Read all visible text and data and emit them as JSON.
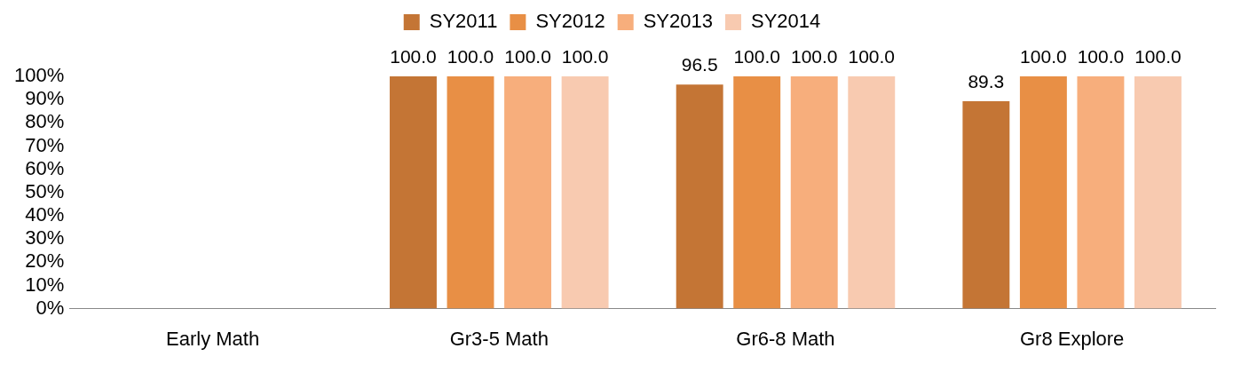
{
  "chart_data": {
    "type": "bar",
    "categories": [
      "Early Math",
      "Gr3-5 Math",
      "Gr6-8 Math",
      "Gr8 Explore"
    ],
    "series": [
      {
        "name": "SY2011",
        "color": "#c47535",
        "values": [
          null,
          100,
          96.5,
          89.3
        ],
        "value_labels": [
          null,
          "100.0",
          "96.5",
          "89.3"
        ]
      },
      {
        "name": "SY2012",
        "color": "#e88f45",
        "values": [
          null,
          100,
          100,
          100
        ],
        "value_labels": [
          null,
          "100.0",
          "100.0",
          "100.0"
        ]
      },
      {
        "name": "SY2013",
        "color": "#f7ae7c",
        "values": [
          null,
          100,
          100,
          100
        ],
        "value_labels": [
          null,
          "100.0",
          "100.0",
          "100.0"
        ]
      },
      {
        "name": "SY2014",
        "color": "#f8cab0",
        "values": [
          null,
          100,
          100,
          100
        ],
        "value_labels": [
          null,
          "100.0",
          "100.0",
          "100.0"
        ]
      }
    ],
    "ylim": [
      0,
      100
    ],
    "yticks": [
      {
        "value": 0,
        "label": "0%"
      },
      {
        "value": 10,
        "label": "10%"
      },
      {
        "value": 20,
        "label": "20%"
      },
      {
        "value": 30,
        "label": "30%"
      },
      {
        "value": 40,
        "label": "40%"
      },
      {
        "value": 50,
        "label": "50%"
      },
      {
        "value": 60,
        "label": "60%"
      },
      {
        "value": 70,
        "label": "70%"
      },
      {
        "value": 80,
        "label": "80%"
      },
      {
        "value": 90,
        "label": "90%"
      },
      {
        "value": 100,
        "label": "100%"
      }
    ],
    "grid": false,
    "legend": "top"
  }
}
